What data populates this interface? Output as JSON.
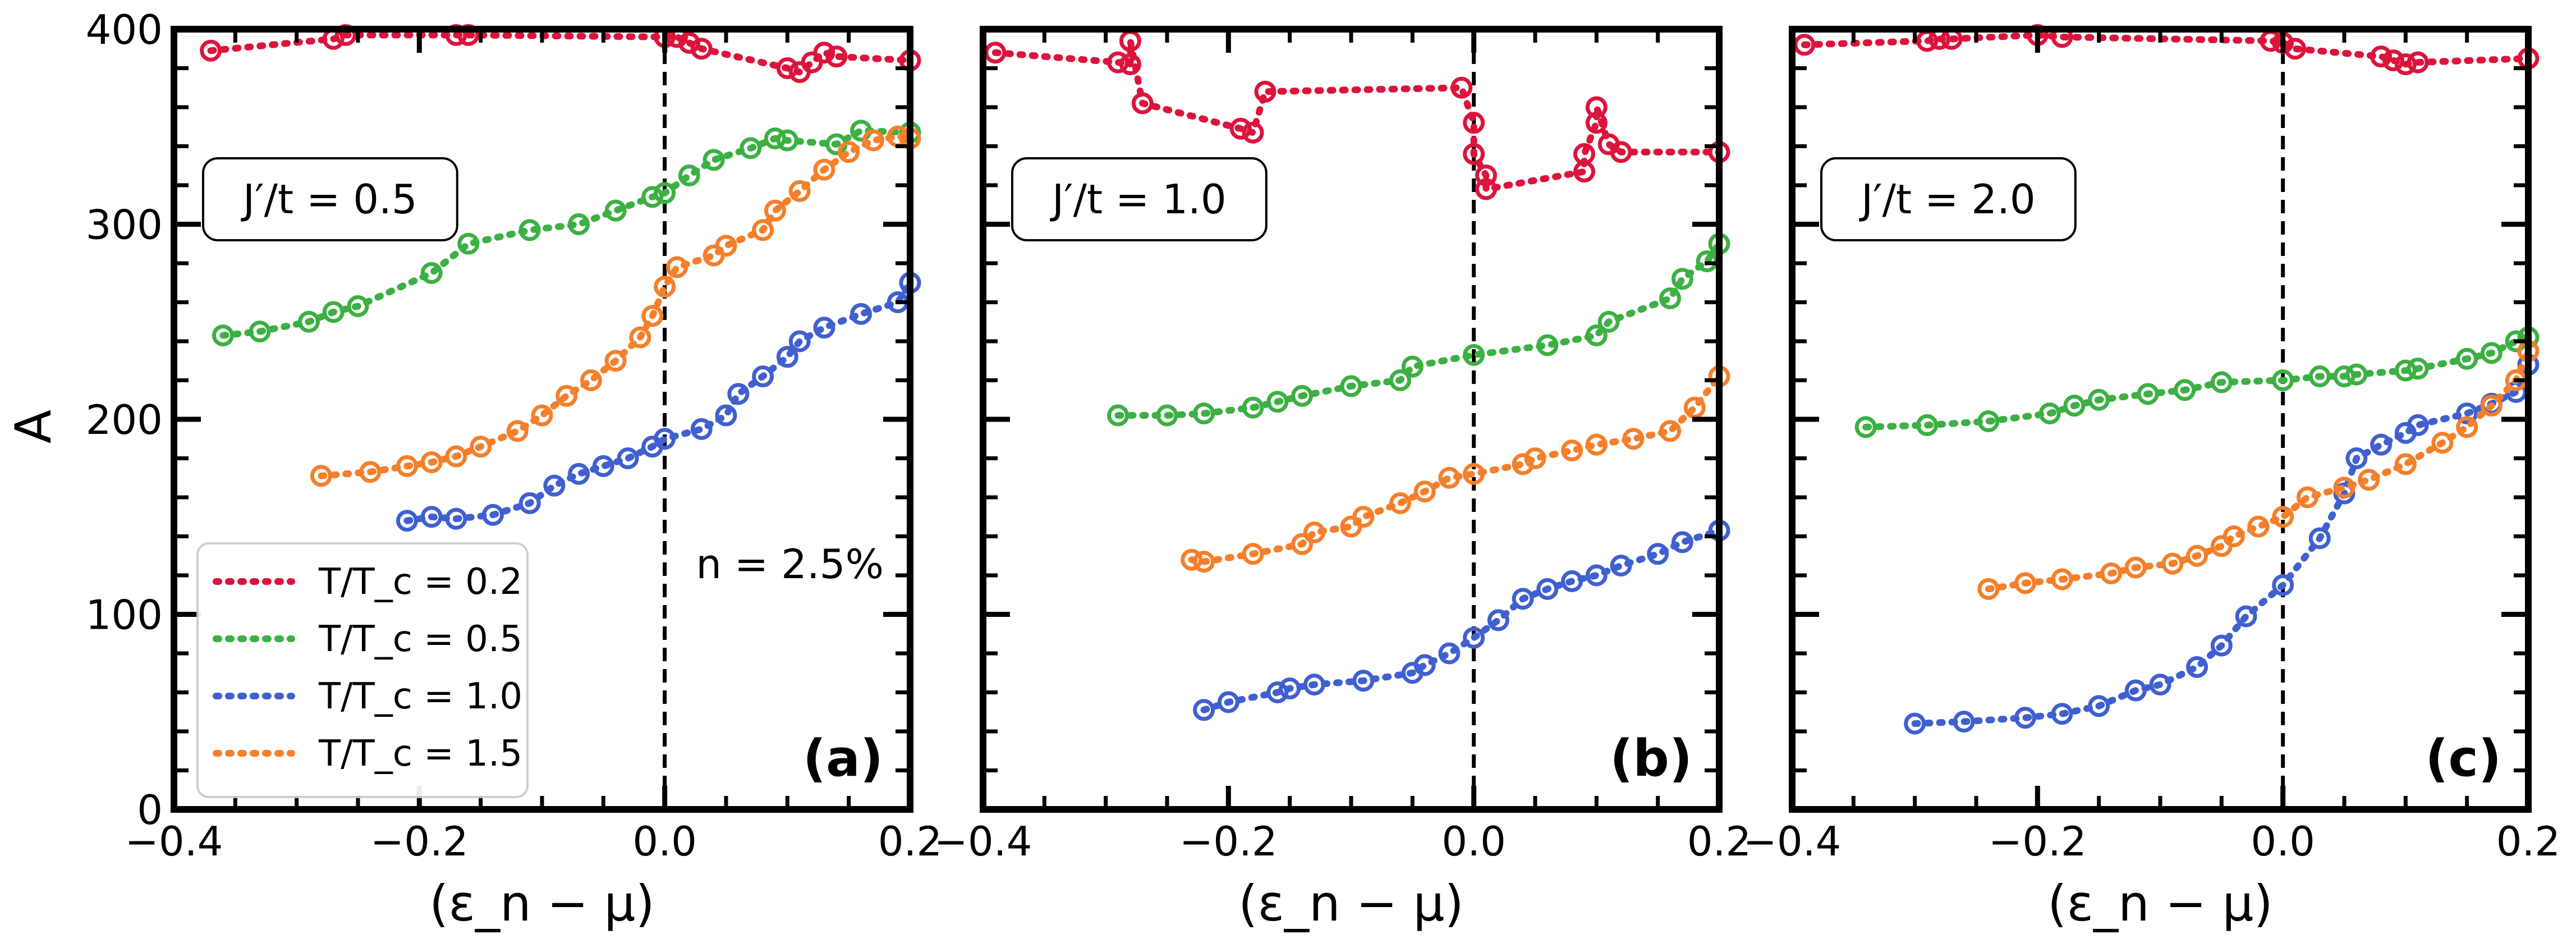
{
  "figure": {
    "ylabel": "A",
    "xlabel": "(ε_n − μ)",
    "legend_entries": [
      {
        "label": "T/T_c = 0.2",
        "color": "#dc143c"
      },
      {
        "label": "T/T_c = 0.5",
        "color": "#3cb043"
      },
      {
        "label": "T/T_c = 1.0",
        "color": "#4060d0"
      },
      {
        "label": "T/T_c = 1.5",
        "color": "#f57f2a"
      }
    ],
    "density_note": "n = 2.5%"
  },
  "chart_data": [
    {
      "type": "line",
      "panel": "(a)",
      "annotation": "J′/t = 0.5",
      "xlim": [
        -0.4,
        0.2
      ],
      "ylim": [
        0,
        400
      ],
      "xticks": [
        "−0.4",
        "−0.2",
        "0.0",
        "0.2"
      ],
      "yticks": [
        "0",
        "100",
        "200",
        "300",
        "400"
      ],
      "vline_x": 0.0,
      "series": [
        {
          "name": "T/T_c = 0.2",
          "color": "#dc143c",
          "points": [
            [
              -0.37,
              389
            ],
            [
              -0.27,
              395
            ],
            [
              -0.26,
              397
            ],
            [
              -0.17,
              397
            ],
            [
              -0.16,
              397
            ],
            [
              0.0,
              396
            ],
            [
              0.01,
              396
            ],
            [
              0.02,
              393
            ],
            [
              0.03,
              390
            ],
            [
              0.1,
              380
            ],
            [
              0.11,
              378
            ],
            [
              0.12,
              383
            ],
            [
              0.13,
              388
            ],
            [
              0.14,
              386
            ],
            [
              0.2,
              384
            ]
          ]
        },
        {
          "name": "T/T_c = 0.5",
          "color": "#3cb043",
          "points": [
            [
              -0.36,
              243
            ],
            [
              -0.33,
              245
            ],
            [
              -0.29,
              250
            ],
            [
              -0.27,
              255
            ],
            [
              -0.25,
              258
            ],
            [
              -0.19,
              275
            ],
            [
              -0.16,
              290
            ],
            [
              -0.11,
              297
            ],
            [
              -0.07,
              300
            ],
            [
              -0.04,
              307
            ],
            [
              -0.01,
              314
            ],
            [
              0.0,
              316
            ],
            [
              0.02,
              325
            ],
            [
              0.04,
              333
            ],
            [
              0.07,
              339
            ],
            [
              0.09,
              344
            ],
            [
              0.1,
              343
            ],
            [
              0.14,
              341
            ],
            [
              0.16,
              348
            ],
            [
              0.2,
              347
            ]
          ]
        },
        {
          "name": "T/T_c = 1.0",
          "color": "#4060d0",
          "points": [
            [
              -0.21,
              148
            ],
            [
              -0.19,
              150
            ],
            [
              -0.17,
              149
            ],
            [
              -0.14,
              151
            ],
            [
              -0.11,
              157
            ],
            [
              -0.09,
              166
            ],
            [
              -0.07,
              172
            ],
            [
              -0.05,
              176
            ],
            [
              -0.03,
              180
            ],
            [
              -0.01,
              186
            ],
            [
              0.0,
              190
            ],
            [
              0.03,
              195
            ],
            [
              0.05,
              202
            ],
            [
              0.06,
              213
            ],
            [
              0.08,
              222
            ],
            [
              0.1,
              232
            ],
            [
              0.11,
              240
            ],
            [
              0.13,
              247
            ],
            [
              0.16,
              254
            ],
            [
              0.19,
              260
            ],
            [
              0.2,
              270
            ]
          ]
        },
        {
          "name": "T/T_c = 1.5",
          "color": "#f57f2a",
          "points": [
            [
              -0.28,
              171
            ],
            [
              -0.24,
              173
            ],
            [
              -0.21,
              176
            ],
            [
              -0.19,
              178
            ],
            [
              -0.17,
              181
            ],
            [
              -0.15,
              186
            ],
            [
              -0.12,
              194
            ],
            [
              -0.1,
              202
            ],
            [
              -0.08,
              212
            ],
            [
              -0.06,
              220
            ],
            [
              -0.04,
              230
            ],
            [
              -0.02,
              242
            ],
            [
              -0.01,
              253
            ],
            [
              0.0,
              268
            ],
            [
              0.01,
              278
            ],
            [
              0.04,
              284
            ],
            [
              0.05,
              289
            ],
            [
              0.08,
              297
            ],
            [
              0.09,
              307
            ],
            [
              0.11,
              317
            ],
            [
              0.13,
              328
            ],
            [
              0.15,
              337
            ],
            [
              0.17,
              343
            ],
            [
              0.19,
              345
            ],
            [
              0.2,
              344
            ]
          ]
        }
      ]
    },
    {
      "type": "line",
      "panel": "(b)",
      "annotation": "J′/t = 1.0",
      "xlim": [
        -0.4,
        0.2
      ],
      "ylim": [
        0,
        400
      ],
      "xticks": [
        "−0.4",
        "−0.2",
        "0.0",
        "0.2"
      ],
      "yticks": [
        "0",
        "100",
        "200",
        "300",
        "400"
      ],
      "vline_x": 0.0,
      "series": [
        {
          "name": "T/T_c = 0.2",
          "color": "#dc143c",
          "points": [
            [
              -0.39,
              388
            ],
            [
              -0.29,
              383
            ],
            [
              -0.28,
              382
            ],
            [
              -0.28,
              394
            ],
            [
              -0.27,
              362
            ],
            [
              -0.19,
              349
            ],
            [
              -0.18,
              347
            ],
            [
              -0.17,
              368
            ],
            [
              -0.01,
              370
            ],
            [
              0.0,
              352
            ],
            [
              0.0,
              336
            ],
            [
              0.01,
              325
            ],
            [
              0.01,
              318
            ],
            [
              0.09,
              327
            ],
            [
              0.09,
              336
            ],
            [
              0.1,
              352
            ],
            [
              0.1,
              360
            ],
            [
              0.11,
              341
            ],
            [
              0.12,
              337
            ],
            [
              0.2,
              337
            ]
          ]
        },
        {
          "name": "T/T_c = 0.5",
          "color": "#3cb043",
          "points": [
            [
              -0.29,
              202
            ],
            [
              -0.25,
              202
            ],
            [
              -0.22,
              203
            ],
            [
              -0.18,
              206
            ],
            [
              -0.16,
              209
            ],
            [
              -0.14,
              212
            ],
            [
              -0.1,
              217
            ],
            [
              -0.06,
              220
            ],
            [
              -0.05,
              227
            ],
            [
              0.0,
              233
            ],
            [
              0.06,
              238
            ],
            [
              0.1,
              243
            ],
            [
              0.11,
              250
            ],
            [
              0.16,
              262
            ],
            [
              0.17,
              272
            ],
            [
              0.19,
              281
            ],
            [
              0.2,
              290
            ]
          ]
        },
        {
          "name": "T/T_c = 1.0",
          "color": "#4060d0",
          "points": [
            [
              -0.22,
              51
            ],
            [
              -0.2,
              55
            ],
            [
              -0.16,
              60
            ],
            [
              -0.15,
              62
            ],
            [
              -0.13,
              64
            ],
            [
              -0.09,
              66
            ],
            [
              -0.05,
              70
            ],
            [
              -0.04,
              74
            ],
            [
              -0.02,
              80
            ],
            [
              0.0,
              88
            ],
            [
              0.02,
              97
            ],
            [
              0.04,
              108
            ],
            [
              0.06,
              113
            ],
            [
              0.08,
              117
            ],
            [
              0.1,
              120
            ],
            [
              0.12,
              125
            ],
            [
              0.15,
              131
            ],
            [
              0.17,
              137
            ],
            [
              0.2,
              143
            ]
          ]
        },
        {
          "name": "T/T_c = 1.5",
          "color": "#f57f2a",
          "points": [
            [
              -0.23,
              128
            ],
            [
              -0.22,
              127
            ],
            [
              -0.18,
              131
            ],
            [
              -0.14,
              136
            ],
            [
              -0.13,
              142
            ],
            [
              -0.1,
              145
            ],
            [
              -0.09,
              150
            ],
            [
              -0.06,
              157
            ],
            [
              -0.04,
              163
            ],
            [
              -0.02,
              170
            ],
            [
              0.0,
              172
            ],
            [
              0.04,
              177
            ],
            [
              0.05,
              180
            ],
            [
              0.08,
              184
            ],
            [
              0.1,
              187
            ],
            [
              0.13,
              190
            ],
            [
              0.16,
              194
            ],
            [
              0.18,
              206
            ],
            [
              0.2,
              222
            ]
          ]
        }
      ]
    },
    {
      "type": "line",
      "panel": "(c)",
      "annotation": "J′/t = 2.0",
      "xlim": [
        -0.4,
        0.2
      ],
      "ylim": [
        0,
        400
      ],
      "xticks": [
        "−0.4",
        "−0.2",
        "0.0",
        "0.2"
      ],
      "yticks": [
        "0",
        "100",
        "200",
        "300",
        "400"
      ],
      "vline_x": 0.0,
      "series": [
        {
          "name": "T/T_c = 0.2",
          "color": "#dc143c",
          "points": [
            [
              -0.39,
              392
            ],
            [
              -0.29,
              394
            ],
            [
              -0.28,
              395
            ],
            [
              -0.27,
              395
            ],
            [
              -0.2,
              397
            ],
            [
              -0.18,
              396
            ],
            [
              -0.01,
              394
            ],
            [
              0.0,
              393
            ],
            [
              0.01,
              390
            ],
            [
              0.08,
              386
            ],
            [
              0.09,
              384
            ],
            [
              0.1,
              382
            ],
            [
              0.11,
              383
            ],
            [
              0.2,
              385
            ]
          ]
        },
        {
          "name": "T/T_c = 0.5",
          "color": "#3cb043",
          "points": [
            [
              -0.34,
              196
            ],
            [
              -0.29,
              197
            ],
            [
              -0.24,
              199
            ],
            [
              -0.19,
              203
            ],
            [
              -0.17,
              207
            ],
            [
              -0.15,
              210
            ],
            [
              -0.11,
              213
            ],
            [
              -0.08,
              215
            ],
            [
              -0.05,
              219
            ],
            [
              0.0,
              220
            ],
            [
              0.03,
              222
            ],
            [
              0.05,
              222
            ],
            [
              0.06,
              223
            ],
            [
              0.1,
              225
            ],
            [
              0.11,
              226
            ],
            [
              0.15,
              231
            ],
            [
              0.17,
              234
            ],
            [
              0.19,
              240
            ],
            [
              0.2,
              242
            ]
          ]
        },
        {
          "name": "T/T_c = 1.0",
          "color": "#4060d0",
          "points": [
            [
              -0.3,
              44
            ],
            [
              -0.26,
              45
            ],
            [
              -0.21,
              47
            ],
            [
              -0.18,
              49
            ],
            [
              -0.15,
              53
            ],
            [
              -0.12,
              61
            ],
            [
              -0.1,
              64
            ],
            [
              -0.07,
              73
            ],
            [
              -0.05,
              84
            ],
            [
              -0.03,
              99
            ],
            [
              0.0,
              115
            ],
            [
              0.03,
              139
            ],
            [
              0.05,
              162
            ],
            [
              0.06,
              180
            ],
            [
              0.08,
              187
            ],
            [
              0.1,
              193
            ],
            [
              0.11,
              197
            ],
            [
              0.15,
              203
            ],
            [
              0.17,
              208
            ],
            [
              0.19,
              214
            ],
            [
              0.2,
              228
            ]
          ]
        },
        {
          "name": "T/T_c = 1.5",
          "color": "#f57f2a",
          "points": [
            [
              -0.24,
              113
            ],
            [
              -0.21,
              116
            ],
            [
              -0.18,
              118
            ],
            [
              -0.14,
              121
            ],
            [
              -0.12,
              124
            ],
            [
              -0.09,
              126
            ],
            [
              -0.07,
              130
            ],
            [
              -0.05,
              135
            ],
            [
              -0.04,
              140
            ],
            [
              -0.02,
              145
            ],
            [
              0.0,
              150
            ],
            [
              0.02,
              160
            ],
            [
              0.05,
              165
            ],
            [
              0.07,
              169
            ],
            [
              0.1,
              177
            ],
            [
              0.13,
              188
            ],
            [
              0.15,
              196
            ],
            [
              0.17,
              207
            ],
            [
              0.19,
              220
            ],
            [
              0.2,
              235
            ]
          ]
        }
      ]
    }
  ]
}
